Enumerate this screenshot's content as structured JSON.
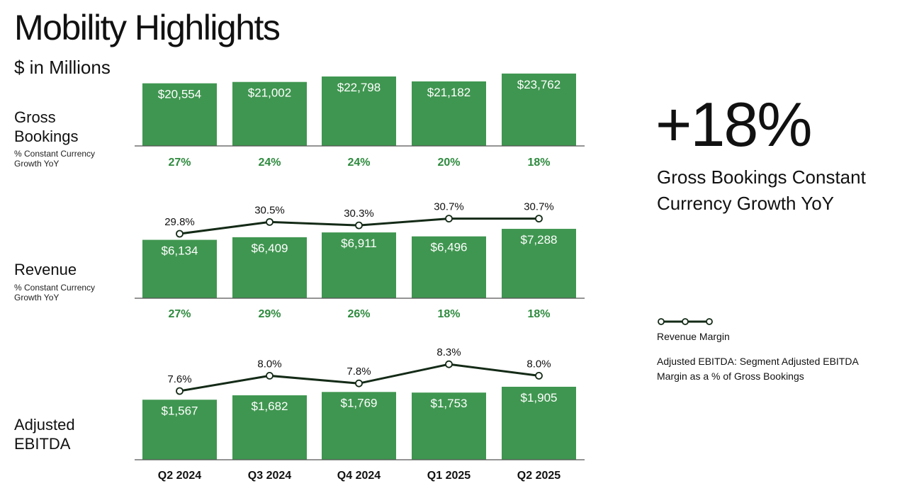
{
  "page": {
    "title": "Mobility Highlights",
    "subtitle": "$ in Millions",
    "rows": {
      "gross_bookings": {
        "label": "Gross Bookings",
        "sub": "% Constant Currency Growth YoY"
      },
      "revenue": {
        "label": "Revenue",
        "sub": "% Constant Currency Growth YoY"
      },
      "adjusted_ebitda": {
        "label": "Adjusted EBITDA"
      }
    },
    "highlight": {
      "value": "+18%",
      "caption": "Gross Bookings Constant Currency Growth YoY"
    },
    "legend": {
      "label": "Revenue Margin"
    },
    "footnote": "Adjusted EBITDA: Segment Adjusted EBITDA Margin as a % of Gross Bookings",
    "colors": {
      "bar": "#3f9650",
      "growth_text": "#2e8a3e",
      "line": "#142b17",
      "axis": "#555555"
    }
  },
  "chart_data": [
    {
      "type": "bar",
      "name": "Gross Bookings",
      "categories": [
        "Q2 2024",
        "Q3 2024",
        "Q4 2024",
        "Q1 2025",
        "Q2 2025"
      ],
      "values": [
        20554,
        21002,
        22798,
        21182,
        23762
      ],
      "value_labels": [
        "$20,554",
        "$21,002",
        "$22,798",
        "$21,182",
        "$23,762"
      ],
      "growth_labels": [
        "27%",
        "24%",
        "24%",
        "20%",
        "18%"
      ]
    },
    {
      "type": "bar",
      "name": "Revenue",
      "categories": [
        "Q2 2024",
        "Q3 2024",
        "Q4 2024",
        "Q1 2025",
        "Q2 2025"
      ],
      "values": [
        6134,
        6409,
        6911,
        6496,
        7288
      ],
      "value_labels": [
        "$6,134",
        "$6,409",
        "$6,911",
        "$6,496",
        "$7,288"
      ],
      "growth_labels": [
        "27%",
        "29%",
        "26%",
        "18%",
        "18%"
      ],
      "line": {
        "values": [
          29.8,
          30.5,
          30.3,
          30.7,
          30.7
        ],
        "labels": [
          "29.8%",
          "30.5%",
          "30.3%",
          "30.7%",
          "30.7%"
        ]
      }
    },
    {
      "type": "bar",
      "name": "Adjusted EBITDA",
      "categories": [
        "Q2 2024",
        "Q3 2024",
        "Q4 2024",
        "Q1 2025",
        "Q2 2025"
      ],
      "values": [
        1567,
        1682,
        1769,
        1753,
        1905
      ],
      "value_labels": [
        "$1,567",
        "$1,682",
        "$1,769",
        "$1,753",
        "$1,905"
      ],
      "line": {
        "values": [
          7.6,
          8.0,
          7.8,
          8.3,
          8.0
        ],
        "labels": [
          "7.6%",
          "8.0%",
          "7.8%",
          "8.3%",
          "8.0%"
        ]
      }
    }
  ]
}
